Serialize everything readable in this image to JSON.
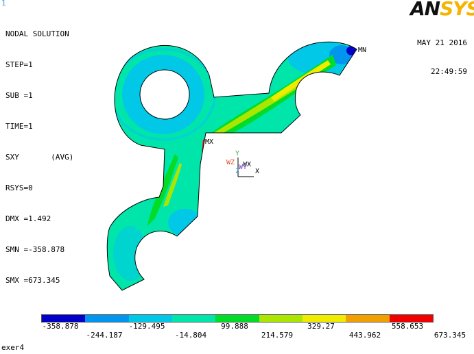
{
  "window_number": "1",
  "info": {
    "title": "NODAL SOLUTION",
    "lines": [
      "STEP=1",
      "SUB =1",
      "TIME=1",
      "SXY       (AVG)",
      "RSYS=0",
      "DMX =1.492",
      "SMN =-358.878",
      "SMX =673.345"
    ]
  },
  "logo": {
    "part1": "AN",
    "part2": "SYS"
  },
  "date": "MAY 21 2016",
  "time": "22:49:59",
  "markers": {
    "min": "MN",
    "max": "MX"
  },
  "triad": {
    "y": "Y",
    "x": "X",
    "z": "Z",
    "wz": "WZ",
    "wx": "WX",
    "wy": "WY"
  },
  "legend": {
    "colors": [
      "#0000c8",
      "#0096f0",
      "#00c8e6",
      "#00e6aa",
      "#00dc28",
      "#aae600",
      "#f0ec00",
      "#f0a000",
      "#f00000"
    ],
    "top_labels": [
      "-358.878",
      "-129.495",
      "99.888",
      "329.27",
      "558.653"
    ],
    "bottom_labels": [
      "-244.187",
      "-14.804",
      "214.579",
      "443.962",
      "673.345"
    ]
  },
  "footer": "exer4"
}
